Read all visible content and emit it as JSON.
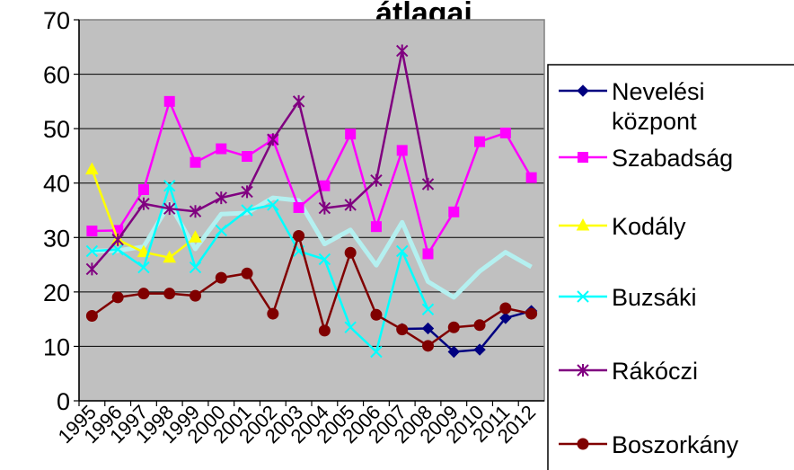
{
  "chart_data": {
    "type": "line",
    "title": "átlagai",
    "categories": [
      "1995",
      "1996",
      "1997",
      "1998",
      "1999",
      "2000",
      "2001",
      "2002",
      "2003",
      "2004",
      "2005",
      "2006",
      "2007",
      "2008",
      "2009",
      "2010",
      "2011",
      "2012"
    ],
    "y_ticks": [
      "0",
      "10",
      "20",
      "30",
      "40",
      "50",
      "60",
      "70"
    ],
    "ylim": [
      0,
      70
    ],
    "grid": true,
    "plot_background": "#c0c0c0",
    "legend_position": "right",
    "series": [
      {
        "name": "Nevelési központ",
        "label_lines": [
          "Nevelési",
          "központ"
        ],
        "color": "#000080",
        "marker": "diamond",
        "values": [
          null,
          null,
          null,
          null,
          null,
          null,
          null,
          null,
          null,
          null,
          null,
          null,
          13.2,
          13.3,
          9.0,
          9.4,
          15.2,
          16.5
        ]
      },
      {
        "name": "Szabadság",
        "label_lines": [
          "Szabadság"
        ],
        "color": "#ff00ff",
        "marker": "square",
        "values": [
          31.2,
          31.3,
          38.8,
          55.0,
          43.8,
          46.3,
          44.9,
          48.0,
          35.5,
          39.5,
          49.0,
          32.0,
          46.0,
          27.0,
          34.7,
          47.6,
          49.2,
          41.0
        ]
      },
      {
        "name": "Kodály",
        "label_lines": [
          "Kodály"
        ],
        "color": "#ffff00",
        "marker": "triangle",
        "values": [
          42.5,
          29.6,
          27.3,
          26.3,
          30.0,
          null,
          null,
          null,
          null,
          null,
          null,
          null,
          null,
          null,
          null,
          null,
          null,
          null
        ]
      },
      {
        "name": "Buzsáki",
        "label_lines": [
          "Buzsáki"
        ],
        "color": "#00ffff",
        "marker": "x",
        "values": [
          27.5,
          27.8,
          24.5,
          39.5,
          24.5,
          31.3,
          35.0,
          36.0,
          27.5,
          26.0,
          13.5,
          9.0,
          27.5,
          16.8,
          null,
          null,
          null,
          null
        ]
      },
      {
        "name": "Rákóczi",
        "label_lines": [
          "Rákóczi"
        ],
        "color": "#800080",
        "marker": "star",
        "values": [
          24.2,
          29.6,
          36.2,
          35.3,
          34.8,
          37.3,
          38.4,
          48.0,
          55.0,
          35.4,
          36.0,
          40.5,
          64.3,
          39.8,
          null,
          null,
          null,
          null
        ]
      },
      {
        "name": "Boszorkány",
        "label_lines": [
          "Boszorkány"
        ],
        "color": "#800000",
        "marker": "circle",
        "values": [
          15.6,
          19.0,
          19.7,
          19.7,
          19.3,
          22.6,
          23.4,
          16.0,
          30.3,
          12.9,
          27.2,
          15.8,
          13.1,
          10.1,
          13.5,
          13.9,
          17.0,
          16.0
        ]
      }
    ],
    "trend_line": {
      "color": "#b4f0f0",
      "values": [
        27.5,
        27.6,
        28.3,
        36.2,
        27.9,
        34.3,
        34.5,
        37.3,
        36.8,
        28.8,
        31.4,
        24.9,
        32.8,
        21.9,
        19.0,
        23.8,
        27.3,
        24.6
      ]
    }
  }
}
